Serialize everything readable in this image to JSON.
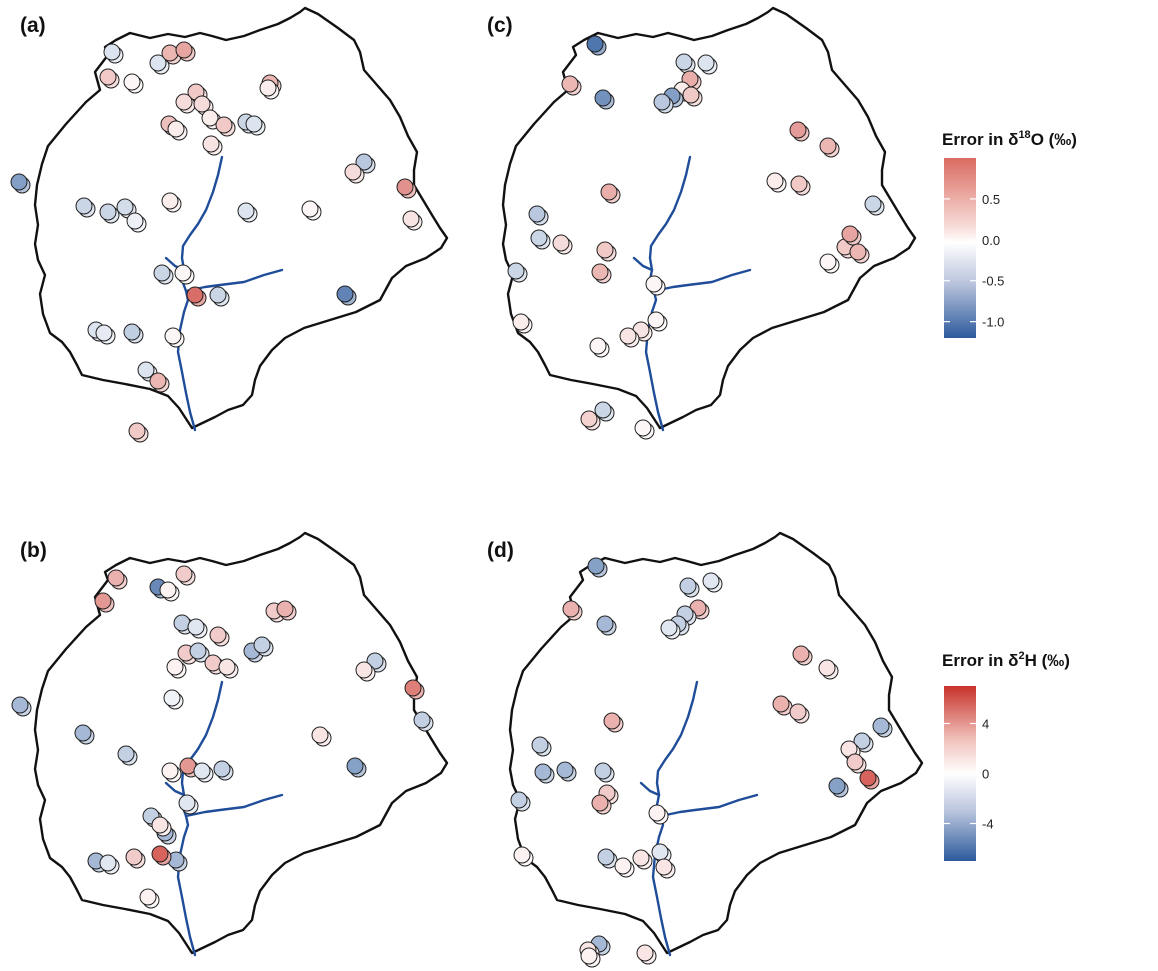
{
  "figure": {
    "panels": [
      {
        "id": "a",
        "label": "(a)",
        "legend": "o18"
      },
      {
        "id": "c",
        "label": "(c)",
        "legend": "o18"
      },
      {
        "id": "b",
        "label": "(b)",
        "legend": "h2"
      },
      {
        "id": "d",
        "label": "(d)",
        "legend": "h2"
      }
    ],
    "colors": {
      "negative": "#2c5a9c",
      "neutral": "#ffffff",
      "positive": "#cf4a42",
      "boundary": "#111111",
      "stream": "#1f4d99"
    }
  },
  "legends": {
    "o18": {
      "title_prefix": "Error in δ",
      "title_sup": "18",
      "title_suffix": "O (‰)",
      "ticks": [
        "0.5",
        "0.0",
        "-0.5",
        "-1.0"
      ],
      "tick_values": [
        0.5,
        0.0,
        -0.5,
        -1.0
      ],
      "range": [
        -1.2,
        1.0
      ]
    },
    "h2": {
      "title_prefix": "Error in δ",
      "title_sup": "2",
      "title_suffix": "H (‰)",
      "ticks": [
        "4",
        "0",
        "-4"
      ],
      "tick_values": [
        4,
        0,
        -4
      ],
      "range": [
        -7,
        7
      ]
    }
  },
  "chart_data": [
    {
      "type": "scatter",
      "panel": "(a)",
      "color_scale": "o18",
      "points": [
        [
          112,
          52,
          -0.2
        ],
        [
          108,
          77,
          0.3
        ],
        [
          132,
          82,
          0.05
        ],
        [
          158,
          63,
          -0.2
        ],
        [
          170,
          53,
          0.4
        ],
        [
          184,
          50,
          0.5
        ],
        [
          196,
          92,
          0.3
        ],
        [
          184,
          102,
          0.2
        ],
        [
          202,
          104,
          0.2
        ],
        [
          210,
          118,
          0.1
        ],
        [
          224,
          125,
          0.3
        ],
        [
          169,
          124,
          0.35
        ],
        [
          176,
          129,
          0.1
        ],
        [
          211,
          144,
          0.15
        ],
        [
          246,
          122,
          -0.3
        ],
        [
          254,
          124,
          -0.2
        ],
        [
          270,
          83,
          0.4
        ],
        [
          268,
          88,
          0.1
        ],
        [
          84,
          206,
          -0.3
        ],
        [
          125,
          207,
          -0.25
        ],
        [
          108,
          212,
          -0.3
        ],
        [
          170,
          201,
          0.1
        ],
        [
          310,
          209,
          0.05
        ],
        [
          246,
          211,
          -0.2
        ],
        [
          19,
          182,
          -0.7
        ],
        [
          364,
          162,
          -0.4
        ],
        [
          353,
          172,
          0.2
        ],
        [
          405,
          187,
          0.6
        ],
        [
          411,
          219,
          0.15
        ],
        [
          135,
          221,
          -0.1
        ],
        [
          162,
          273,
          -0.3
        ],
        [
          183,
          273,
          0.05
        ],
        [
          195,
          295,
          0.8
        ],
        [
          218,
          295,
          -0.3
        ],
        [
          345,
          294,
          -0.9
        ],
        [
          96,
          330,
          -0.2
        ],
        [
          104,
          333,
          -0.15
        ],
        [
          132,
          332,
          -0.35
        ],
        [
          173,
          336,
          0.05
        ],
        [
          146,
          370,
          -0.2
        ],
        [
          158,
          381,
          0.4
        ],
        [
          137,
          431,
          0.3
        ]
      ]
    },
    {
      "type": "scatter",
      "panel": "(c)",
      "color_scale": "o18",
      "points": [
        [
          595,
          44,
          -1.0
        ],
        [
          570,
          84,
          0.4
        ],
        [
          603,
          98,
          -0.8
        ],
        [
          684,
          62,
          -0.3
        ],
        [
          706,
          63,
          -0.2
        ],
        [
          690,
          79,
          0.45
        ],
        [
          682,
          90,
          0.1
        ],
        [
          672,
          96,
          -0.7
        ],
        [
          662,
          102,
          -0.4
        ],
        [
          691,
          95,
          0.3
        ],
        [
          798,
          130,
          0.55
        ],
        [
          828,
          146,
          0.4
        ],
        [
          775,
          181,
          0.1
        ],
        [
          799,
          184,
          0.3
        ],
        [
          873,
          204,
          -0.3
        ],
        [
          609,
          192,
          0.45
        ],
        [
          537,
          214,
          -0.4
        ],
        [
          539,
          238,
          -0.3
        ],
        [
          561,
          243,
          0.2
        ],
        [
          605,
          250,
          0.3
        ],
        [
          600,
          272,
          0.4
        ],
        [
          828,
          262,
          0.05
        ],
        [
          845,
          247,
          0.3
        ],
        [
          850,
          234,
          0.5
        ],
        [
          858,
          252,
          0.4
        ],
        [
          516,
          271,
          -0.3
        ],
        [
          654,
          284,
          0.05
        ],
        [
          521,
          322,
          0.1
        ],
        [
          656,
          320,
          0.05
        ],
        [
          641,
          330,
          0.15
        ],
        [
          628,
          336,
          0.15
        ],
        [
          598,
          346,
          0.05
        ],
        [
          603,
          410,
          -0.3
        ],
        [
          589,
          419,
          0.25
        ],
        [
          643,
          428,
          0.05
        ]
      ]
    },
    {
      "type": "scatter",
      "panel": "(b)",
      "color_scale": "h2",
      "points": [
        [
          116,
          578,
          3
        ],
        [
          103,
          601,
          4
        ],
        [
          158,
          587,
          -5
        ],
        [
          168,
          590,
          0.5
        ],
        [
          184,
          574,
          2
        ],
        [
          182,
          623,
          -2
        ],
        [
          196,
          627,
          -1
        ],
        [
          218,
          635,
          2
        ],
        [
          186,
          653,
          2
        ],
        [
          198,
          651,
          -2
        ],
        [
          175,
          667,
          0.5
        ],
        [
          213,
          663,
          2
        ],
        [
          227,
          667,
          1
        ],
        [
          252,
          651,
          -3
        ],
        [
          262,
          645,
          -2
        ],
        [
          274,
          611,
          2
        ],
        [
          285,
          609,
          3
        ],
        [
          172,
          698,
          -0.5
        ],
        [
          20,
          705,
          -3
        ],
        [
          83,
          733,
          -3
        ],
        [
          126,
          754,
          -2
        ],
        [
          170,
          771,
          0.5
        ],
        [
          320,
          735,
          1
        ],
        [
          375,
          661,
          -2
        ],
        [
          364,
          670,
          1
        ],
        [
          413,
          688,
          5
        ],
        [
          422,
          720,
          -2
        ],
        [
          165,
          833,
          -3
        ],
        [
          188,
          766,
          4
        ],
        [
          202,
          771,
          -1
        ],
        [
          222,
          769,
          -2
        ],
        [
          187,
          803,
          -1
        ],
        [
          355,
          766,
          -4
        ],
        [
          96,
          861,
          -3
        ],
        [
          108,
          863,
          -1
        ],
        [
          134,
          857,
          2
        ],
        [
          176,
          860,
          -3
        ],
        [
          151,
          816,
          -2
        ],
        [
          160,
          825,
          1
        ],
        [
          160,
          854,
          6
        ],
        [
          148,
          897,
          0.5
        ]
      ]
    },
    {
      "type": "scatter",
      "panel": "(d)",
      "color_scale": "h2",
      "points": [
        [
          596,
          566,
          -4
        ],
        [
          571,
          609,
          3
        ],
        [
          605,
          624,
          -3
        ],
        [
          688,
          586,
          -2
        ],
        [
          711,
          581,
          -1
        ],
        [
          698,
          608,
          3
        ],
        [
          685,
          614,
          -2
        ],
        [
          678,
          624,
          -2
        ],
        [
          669,
          628,
          -1
        ],
        [
          801,
          654,
          3
        ],
        [
          827,
          668,
          1
        ],
        [
          781,
          704,
          3
        ],
        [
          798,
          712,
          2
        ],
        [
          881,
          726,
          -3
        ],
        [
          612,
          721,
          3
        ],
        [
          540,
          745,
          -2
        ],
        [
          543,
          772,
          -3
        ],
        [
          565,
          770,
          -3
        ],
        [
          603,
          771,
          -2
        ],
        [
          607,
          793,
          2
        ],
        [
          600,
          803,
          3
        ],
        [
          862,
          741,
          -2
        ],
        [
          849,
          749,
          1
        ],
        [
          855,
          762,
          2
        ],
        [
          868,
          778,
          6
        ],
        [
          837,
          786,
          -4
        ],
        [
          519,
          800,
          -2
        ],
        [
          657,
          813,
          0.5
        ],
        [
          522,
          855,
          0.5
        ],
        [
          606,
          857,
          -2
        ],
        [
          660,
          852,
          -1
        ],
        [
          664,
          867,
          1
        ],
        [
          641,
          858,
          1
        ],
        [
          623,
          866,
          0.5
        ],
        [
          599,
          944,
          -3
        ],
        [
          588,
          950,
          1
        ],
        [
          645,
          953,
          1
        ],
        [
          589,
          956,
          0.5
        ]
      ]
    }
  ]
}
